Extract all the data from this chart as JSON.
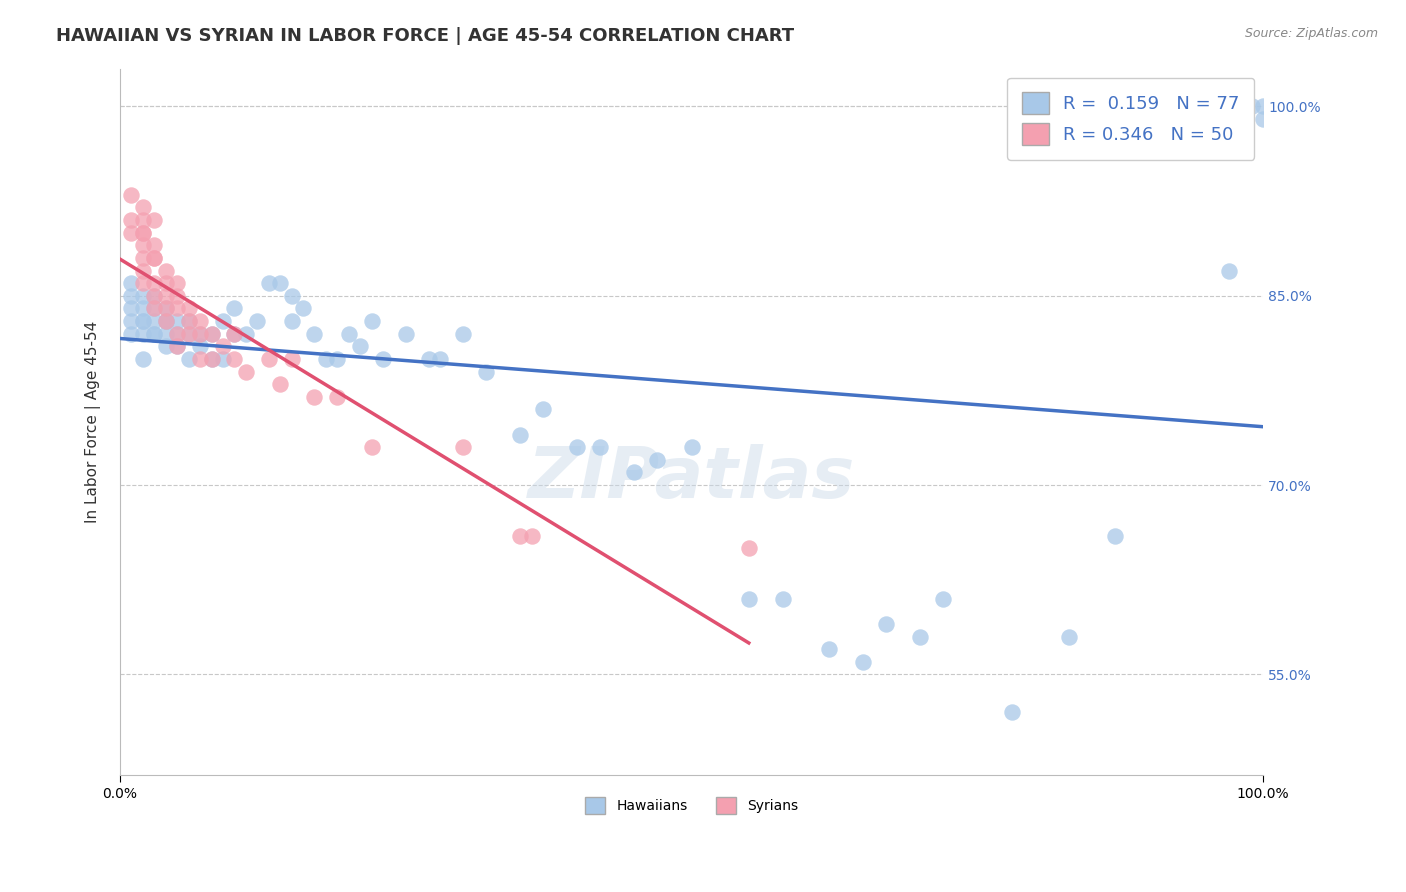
{
  "title": "HAWAIIAN VS SYRIAN IN LABOR FORCE | AGE 45-54 CORRELATION CHART",
  "source_text": "Source: ZipAtlas.com",
  "ylabel": "In Labor Force | Age 45-54",
  "xlim": [
    0.0,
    1.0
  ],
  "ylim": [
    0.47,
    1.03
  ],
  "yticks": [
    0.55,
    0.7,
    0.85,
    1.0
  ],
  "ytick_labels": [
    "55.0%",
    "70.0%",
    "85.0%",
    "100.0%"
  ],
  "xtick_labels": [
    "0.0%",
    "100.0%"
  ],
  "hawaiian_R": 0.159,
  "hawaiian_N": 77,
  "syrian_R": 0.346,
  "syrian_N": 50,
  "hawaiian_color": "#a8c8e8",
  "syrian_color": "#f4a0b0",
  "hawaiian_line_color": "#4472c4",
  "syrian_line_color": "#e05070",
  "background_color": "#ffffff",
  "grid_color": "#c8c8c8",
  "title_fontsize": 13,
  "axis_label_fontsize": 11,
  "tick_fontsize": 10,
  "legend_fontsize": 13,
  "watermark_text": "ZIPatlas",
  "hawaiian_x": [
    0.01,
    0.01,
    0.01,
    0.01,
    0.01,
    0.02,
    0.02,
    0.02,
    0.02,
    0.02,
    0.02,
    0.03,
    0.03,
    0.03,
    0.03,
    0.03,
    0.04,
    0.04,
    0.04,
    0.04,
    0.04,
    0.05,
    0.05,
    0.05,
    0.06,
    0.06,
    0.06,
    0.07,
    0.07,
    0.08,
    0.08,
    0.09,
    0.09,
    0.1,
    0.1,
    0.11,
    0.12,
    0.13,
    0.14,
    0.15,
    0.15,
    0.16,
    0.17,
    0.18,
    0.19,
    0.2,
    0.21,
    0.22,
    0.23,
    0.25,
    0.27,
    0.28,
    0.3,
    0.32,
    0.35,
    0.37,
    0.4,
    0.42,
    0.45,
    0.47,
    0.5,
    0.55,
    0.58,
    0.62,
    0.65,
    0.67,
    0.7,
    0.72,
    0.78,
    0.83,
    0.87,
    0.92,
    0.95,
    0.97,
    0.99,
    1.0,
    1.0
  ],
  "hawaiian_y": [
    0.82,
    0.83,
    0.84,
    0.85,
    0.86,
    0.8,
    0.82,
    0.83,
    0.85,
    0.84,
    0.83,
    0.82,
    0.83,
    0.84,
    0.85,
    0.82,
    0.82,
    0.83,
    0.84,
    0.81,
    0.83,
    0.83,
    0.82,
    0.81,
    0.82,
    0.8,
    0.83,
    0.82,
    0.81,
    0.82,
    0.8,
    0.83,
    0.8,
    0.84,
    0.82,
    0.82,
    0.83,
    0.86,
    0.86,
    0.85,
    0.83,
    0.84,
    0.82,
    0.8,
    0.8,
    0.82,
    0.81,
    0.83,
    0.8,
    0.82,
    0.8,
    0.8,
    0.82,
    0.79,
    0.74,
    0.76,
    0.73,
    0.73,
    0.71,
    0.72,
    0.73,
    0.61,
    0.61,
    0.57,
    0.56,
    0.59,
    0.58,
    0.61,
    0.52,
    0.58,
    0.66,
    1.0,
    0.99,
    0.87,
    1.0,
    1.0,
    0.99
  ],
  "syrian_x": [
    0.01,
    0.01,
    0.01,
    0.02,
    0.02,
    0.02,
    0.02,
    0.02,
    0.02,
    0.02,
    0.02,
    0.03,
    0.03,
    0.03,
    0.03,
    0.03,
    0.03,
    0.03,
    0.04,
    0.04,
    0.04,
    0.04,
    0.04,
    0.05,
    0.05,
    0.05,
    0.05,
    0.05,
    0.06,
    0.06,
    0.06,
    0.07,
    0.07,
    0.07,
    0.08,
    0.08,
    0.09,
    0.1,
    0.1,
    0.11,
    0.13,
    0.14,
    0.15,
    0.17,
    0.19,
    0.22,
    0.3,
    0.35,
    0.36,
    0.55
  ],
  "syrian_y": [
    0.93,
    0.91,
    0.9,
    0.92,
    0.91,
    0.9,
    0.89,
    0.88,
    0.87,
    0.86,
    0.9,
    0.91,
    0.89,
    0.88,
    0.86,
    0.85,
    0.84,
    0.88,
    0.87,
    0.86,
    0.85,
    0.84,
    0.83,
    0.86,
    0.85,
    0.84,
    0.82,
    0.81,
    0.84,
    0.83,
    0.82,
    0.83,
    0.82,
    0.8,
    0.82,
    0.8,
    0.81,
    0.82,
    0.8,
    0.79,
    0.8,
    0.78,
    0.8,
    0.77,
    0.77,
    0.73,
    0.73,
    0.66,
    0.66,
    0.65
  ]
}
